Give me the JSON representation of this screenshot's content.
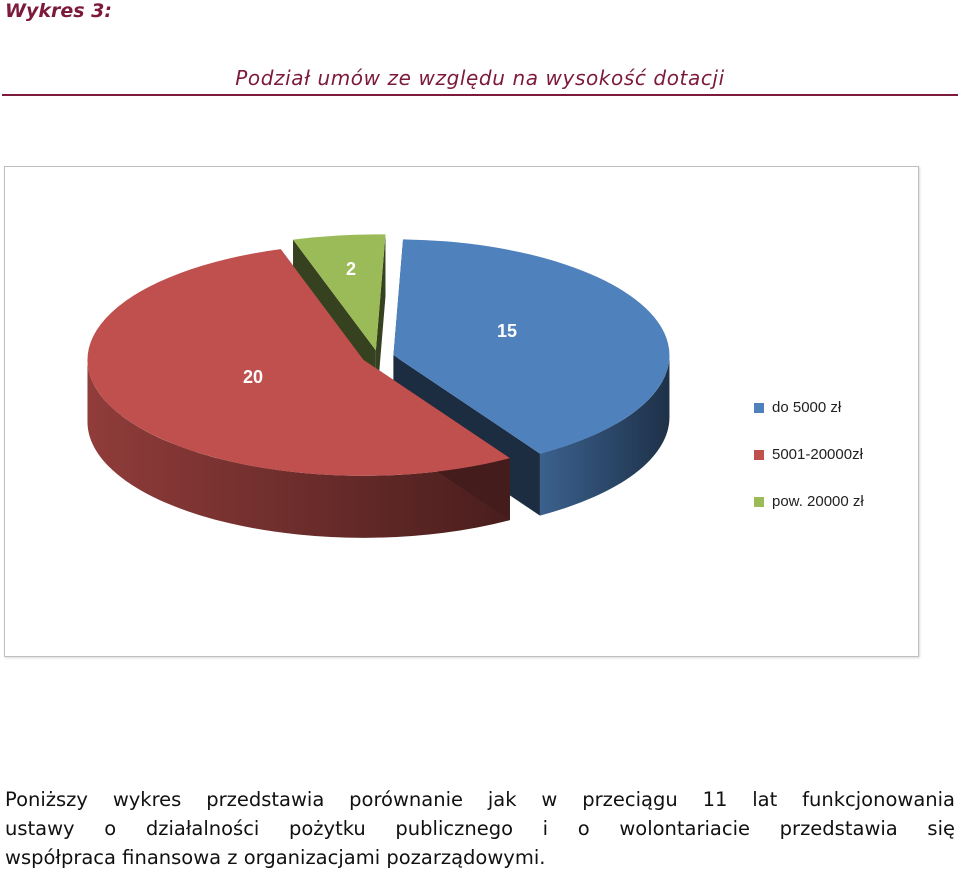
{
  "header": {
    "chart_label": "Wykres 3:",
    "subtitle": "Podział umów ze względu na wysokość dotacji"
  },
  "chart_data": {
    "type": "pie",
    "style": "3d-exploded",
    "title": "",
    "categories": [
      "do 5000 zł",
      "5001-20000zł",
      "pow. 20000 zł"
    ],
    "values": [
      15,
      20,
      2
    ],
    "data_labels": [
      "15",
      "20",
      "2"
    ],
    "colors": [
      "#4f81bd",
      "#c0504d",
      "#9bbb59"
    ],
    "legend_position": "right"
  },
  "paragraph": {
    "lines": [
      "Poniższy wykres przedstawia porównanie jak w przeciągu 11 lat funkcjonowania",
      "ustawy o działalności pożytku publicznego i o wolontariacie przedstawia się",
      "współpraca finansowa z organizacjami pozarządowymi."
    ]
  }
}
